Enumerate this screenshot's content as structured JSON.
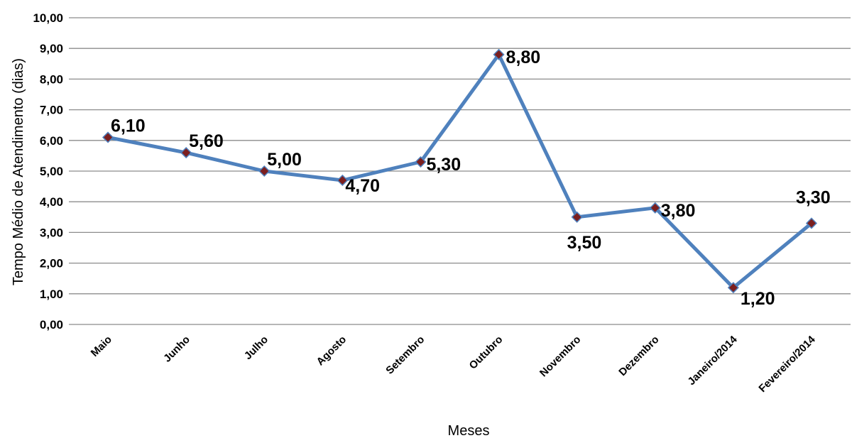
{
  "chart_data": {
    "type": "line",
    "categories": [
      "Maio",
      "Junho",
      "Julho",
      "Agosto",
      "Setembro",
      "Outubro",
      "Novembro",
      "Dezembro",
      "Janeiro/2014",
      "Fevereiro/2014"
    ],
    "values": [
      6.1,
      5.6,
      5.0,
      4.7,
      5.3,
      8.8,
      3.5,
      3.8,
      1.2,
      3.3
    ],
    "data_labels": [
      "6,10",
      "5,60",
      "5,00",
      "4,70",
      "5,30",
      "8,80",
      "3,50",
      "3,80",
      "1,20",
      "3,30"
    ],
    "y_ticks": [
      "0,00",
      "1,00",
      "2,00",
      "3,00",
      "4,00",
      "5,00",
      "6,00",
      "7,00",
      "8,00",
      "9,00",
      "10,00"
    ],
    "title": "",
    "xlabel": "Meses",
    "ylabel": "Tempo Médio de Atendimento (dias)",
    "ylim": [
      0,
      10
    ],
    "grid": true,
    "legend": "none",
    "colors": {
      "line": "#4F81BD",
      "marker_fill": "#7B1F1F",
      "marker_stroke": "#4F81BD",
      "grid": "#8C8C8C"
    }
  }
}
